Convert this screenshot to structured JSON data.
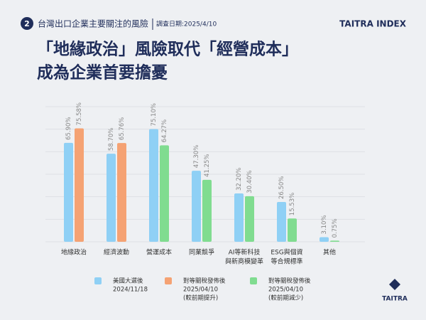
{
  "header": {
    "number": "2",
    "topic": "台灣出口企業主要關注的風險",
    "date": "調查日期:2025/4/10",
    "brand": "TAITRA INDEX",
    "logo": "TAITRA"
  },
  "chart_data": {
    "type": "bar",
    "title": [
      "「地緣政治」風險取代「經營成本」",
      "成為企業首要擔憂"
    ],
    "categories": [
      [
        "地緣政治"
      ],
      [
        "經濟波動"
      ],
      [
        "營運成本"
      ],
      [
        "同業競爭"
      ],
      [
        "AI等新科技",
        "與新商模變革"
      ],
      [
        "ESG與個資",
        "等合規標準"
      ],
      [
        "其他"
      ]
    ],
    "ylim": [
      0,
      90
    ],
    "yticks": [
      0,
      15,
      30,
      45,
      60,
      75,
      90
    ],
    "grid": true,
    "series": [
      {
        "name": [
          "美國大選後",
          "2024/11/18"
        ],
        "color": "#8fd0f5",
        "values": [
          65.9,
          58.7,
          75.1,
          47.3,
          32.2,
          26.5,
          3.1
        ],
        "value_labels": [
          "65.90%",
          "58.70%",
          "75.10%",
          "47.30%",
          "32.20%",
          "26.50%",
          "3.10%"
        ]
      },
      {
        "name": [
          "對等關稅發佈後",
          "2025/04/10"
        ],
        "colors": [
          "#f5a273",
          "#f5a273",
          "#80dc90",
          "#80dc90",
          "#80dc90",
          "#80dc90",
          "#80dc90"
        ],
        "values": [
          75.58,
          65.76,
          64.27,
          41.25,
          30.4,
          15.53,
          0.75
        ],
        "value_labels": [
          "75.58%",
          "65.76%",
          "64.27%",
          "41.25%",
          "30.40%",
          "15.53%",
          "0.75%"
        ]
      }
    ],
    "legend": [
      {
        "lines": [
          "美國大選後",
          "2024/11/18"
        ],
        "color": "#8fd0f5"
      },
      {
        "lines": [
          "對等關稅發佈後",
          "2025/04/10",
          "(較前期提升)"
        ],
        "color": "#f5a273"
      },
      {
        "lines": [
          "對等關稅發佈後",
          "2025/04/10",
          "(較前期減少)"
        ],
        "color": "#80dc90"
      }
    ]
  }
}
